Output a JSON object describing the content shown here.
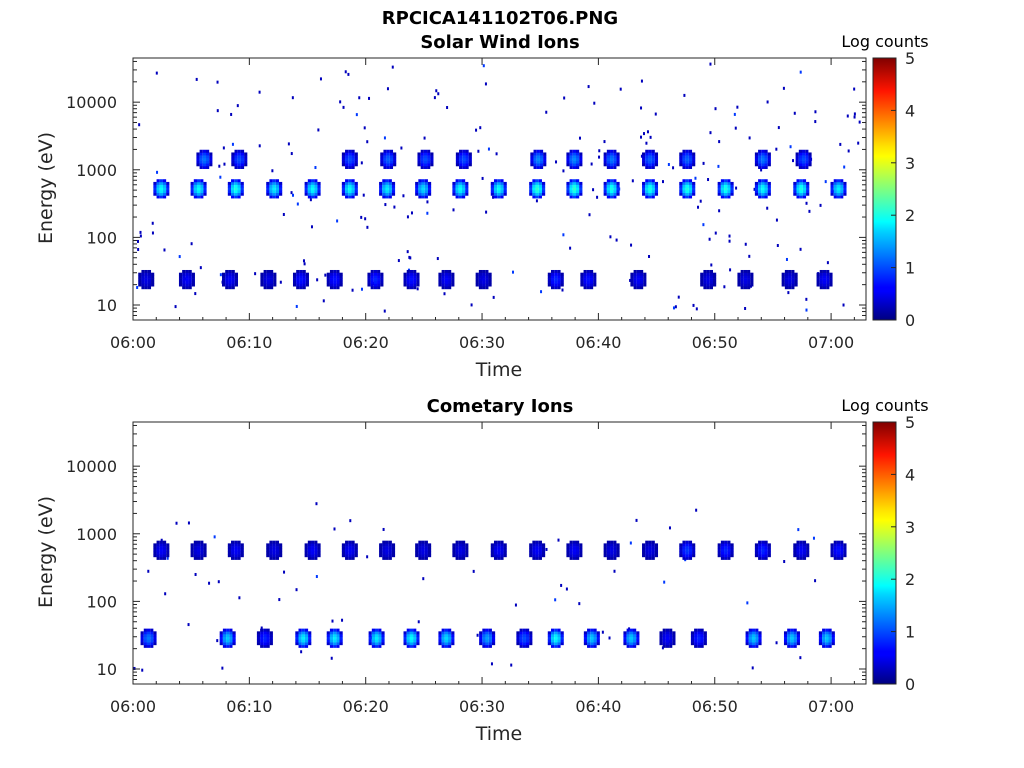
{
  "figure_title": "RPCICA141102T06.PNG",
  "chart_data": [
    {
      "type": "heatmap",
      "title": "Solar Wind Ions",
      "xlabel": "Time",
      "ylabel": "Energy (eV)",
      "x_ticks": [
        "06:00",
        "06:10",
        "06:20",
        "06:30",
        "06:40",
        "06:50",
        "07:00"
      ],
      "x_range_minutes": [
        0,
        63
      ],
      "y_ticks": [
        "10",
        "100",
        "1000",
        "10000"
      ],
      "y_scale": "log",
      "ylim": [
        6,
        45000
      ],
      "colorbar": {
        "label": "Log counts",
        "ticks": [
          "0",
          "1",
          "2",
          "3",
          "4",
          "5"
        ],
        "range": [
          0,
          5
        ],
        "colormap": "jet"
      },
      "series": [
        {
          "name": "main beam ~500-600 eV",
          "energy_eV": 550,
          "times_min": [
            2.3,
            5.5,
            8.7,
            12.0,
            15.3,
            18.5,
            21.7,
            24.8,
            28.0,
            31.3,
            34.6,
            37.8,
            41.0,
            44.3,
            47.5,
            50.8,
            54.0,
            57.3,
            60.5
          ],
          "peak_log_counts": [
            1.9,
            1.9,
            2.0,
            1.8,
            1.9,
            1.9,
            1.8,
            1.7,
            1.9,
            1.9,
            2.1,
            2.1,
            2.0,
            2.0,
            2.0,
            2.0,
            1.9,
            2.0,
            1.8
          ]
        },
        {
          "name": "upper band ~1500 eV",
          "energy_eV": 1500,
          "times_min": [
            6.0,
            9.0,
            18.5,
            21.8,
            25.0,
            28.3,
            34.7,
            37.8,
            41.0,
            44.3,
            47.5,
            54.0,
            57.5
          ],
          "peak_log_counts": [
            1.2,
            1.0,
            1.0,
            1.1,
            1.0,
            1.0,
            1.3,
            1.3,
            1.2,
            1.1,
            1.1,
            1.2,
            1.0
          ]
        },
        {
          "name": "low energy ~20-50 eV",
          "energy_eV": 25,
          "times_min": [
            1.0,
            4.5,
            8.2,
            11.5,
            14.3,
            17.2,
            20.7,
            23.8,
            26.8,
            30.0,
            36.2,
            39.0,
            43.3,
            49.3,
            52.5,
            56.3,
            59.3
          ],
          "peak_log_counts": [
            0.5,
            0.6,
            0.6,
            0.5,
            0.7,
            0.7,
            0.8,
            0.7,
            0.6,
            0.5,
            0.8,
            0.7,
            0.6,
            0.5,
            0.5,
            0.5,
            0.6
          ]
        }
      ]
    },
    {
      "type": "heatmap",
      "title": "Cometary Ions",
      "xlabel": "Time",
      "ylabel": "Energy (eV)",
      "x_ticks": [
        "06:00",
        "06:10",
        "06:20",
        "06:30",
        "06:40",
        "06:50",
        "07:00"
      ],
      "x_range_minutes": [
        0,
        63
      ],
      "y_ticks": [
        "10",
        "100",
        "1000",
        "10000"
      ],
      "y_scale": "log",
      "ylim": [
        6,
        45000
      ],
      "colorbar": {
        "label": "Log counts",
        "ticks": [
          "0",
          "1",
          "2",
          "3",
          "4",
          "5"
        ],
        "range": [
          0,
          5
        ],
        "colormap": "jet"
      },
      "series": [
        {
          "name": "cometary ~20-60 eV",
          "energy_eV": 30,
          "times_min": [
            1.2,
            8.0,
            11.2,
            14.5,
            17.2,
            20.8,
            23.8,
            26.8,
            30.3,
            33.5,
            36.2,
            39.3,
            42.7,
            45.8,
            48.5,
            53.2,
            56.5,
            59.5
          ],
          "peak_log_counts": [
            1.2,
            1.6,
            0.8,
            1.8,
            1.8,
            1.8,
            1.9,
            1.7,
            1.4,
            1.0,
            1.9,
            1.6,
            1.6,
            0.6,
            0.8,
            1.6,
            1.6,
            1.6
          ]
        },
        {
          "name": "~600 eV band",
          "energy_eV": 600,
          "times_min": [
            2.3,
            5.5,
            8.7,
            12.0,
            15.3,
            18.5,
            21.7,
            24.8,
            28.0,
            31.3,
            34.6,
            37.8,
            41.0,
            44.3,
            47.5,
            50.8,
            54.0,
            57.3,
            60.5
          ],
          "peak_log_counts": [
            0.6,
            0.5,
            0.6,
            0.5,
            0.6,
            0.6,
            0.5,
            0.5,
            0.5,
            0.6,
            0.6,
            0.6,
            0.5,
            0.5,
            0.9,
            0.8,
            0.8,
            0.6,
            0.7
          ]
        }
      ]
    }
  ]
}
